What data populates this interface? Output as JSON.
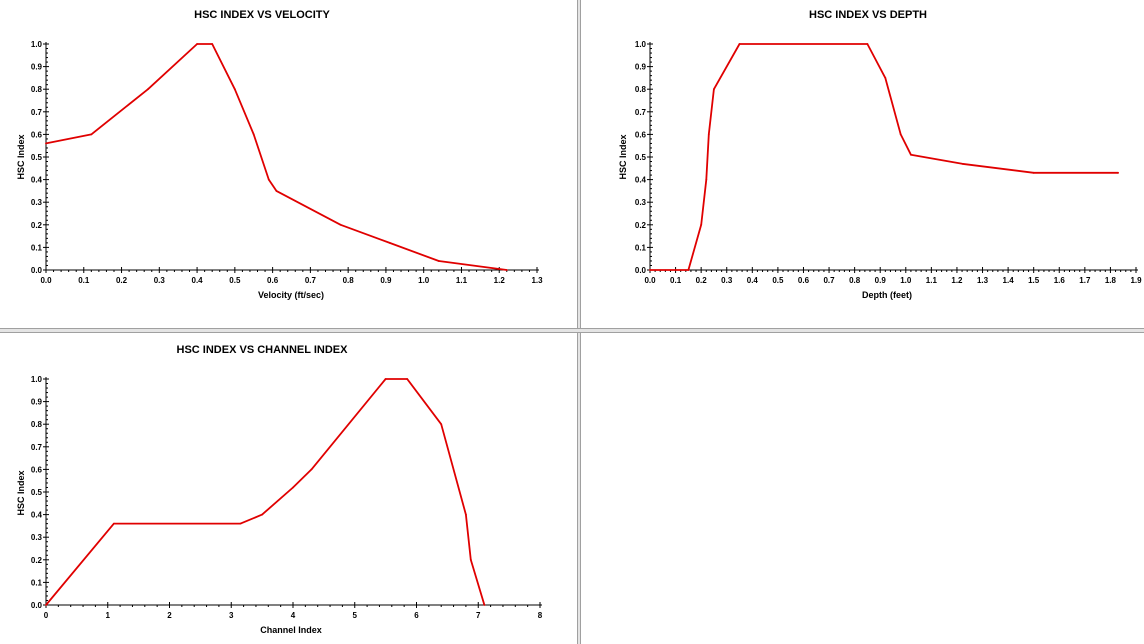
{
  "chart_data": [
    {
      "type": "line",
      "title": "HSC INDEX VS VELOCITY",
      "xlabel": "Velocity (ft/sec)",
      "ylabel": "HSC Index",
      "xlim": [
        0,
        1.3
      ],
      "ylim": [
        0,
        1.0
      ],
      "x_ticks": [
        "0.0",
        "0.1",
        "0.2",
        "0.3",
        "0.4",
        "0.5",
        "0.6",
        "0.7",
        "0.8",
        "0.9",
        "1.0",
        "1.1",
        "1.2",
        "1.3"
      ],
      "y_ticks": [
        "0.0",
        "0.1",
        "0.2",
        "0.3",
        "0.4",
        "0.5",
        "0.6",
        "0.7",
        "0.8",
        "0.9",
        "1.0"
      ],
      "series": [
        {
          "color": "#e00000",
          "x": [
            0.0,
            0.12,
            0.27,
            0.4,
            0.44,
            0.5,
            0.55,
            0.59,
            0.61,
            0.78,
            0.91,
            1.04,
            1.22
          ],
          "y": [
            0.56,
            0.6,
            0.8,
            1.0,
            1.0,
            0.8,
            0.6,
            0.4,
            0.35,
            0.2,
            0.12,
            0.04,
            0.0
          ]
        }
      ]
    },
    {
      "type": "line",
      "title": "HSC INDEX VS DEPTH",
      "xlabel": "Depth (feet)",
      "ylabel": "HSC Index",
      "xlim": [
        0,
        1.9
      ],
      "ylim": [
        0,
        1.0
      ],
      "x_ticks": [
        "0.0",
        "0.1",
        "0.2",
        "0.3",
        "0.4",
        "0.5",
        "0.6",
        "0.7",
        "0.8",
        "0.9",
        "1.0",
        "1.1",
        "1.2",
        "1.3",
        "1.4",
        "1.5",
        "1.6",
        "1.7",
        "1.8",
        "1.9"
      ],
      "y_ticks": [
        "0.0",
        "0.1",
        "0.2",
        "0.3",
        "0.4",
        "0.5",
        "0.6",
        "0.7",
        "0.8",
        "0.9",
        "1.0"
      ],
      "series": [
        {
          "color": "#e00000",
          "x": [
            0.0,
            0.15,
            0.2,
            0.22,
            0.23,
            0.25,
            0.35,
            0.85,
            0.92,
            0.98,
            1.02,
            1.22,
            1.5,
            1.83
          ],
          "y": [
            0.0,
            0.0,
            0.2,
            0.4,
            0.6,
            0.8,
            1.0,
            1.0,
            0.85,
            0.6,
            0.51,
            0.47,
            0.43,
            0.43
          ]
        }
      ]
    },
    {
      "type": "line",
      "title": "HSC INDEX VS CHANNEL INDEX",
      "xlabel": "Channel Index",
      "ylabel": "HSC Index",
      "xlim": [
        0,
        8
      ],
      "ylim": [
        0,
        1.0
      ],
      "x_ticks": [
        "0",
        "1",
        "2",
        "3",
        "4",
        "5",
        "6",
        "7",
        "8"
      ],
      "y_ticks": [
        "0.0",
        "0.1",
        "0.2",
        "0.3",
        "0.4",
        "0.5",
        "0.6",
        "0.7",
        "0.8",
        "0.9",
        "1.0"
      ],
      "series": [
        {
          "color": "#e00000",
          "x": [
            0.0,
            1.1,
            3.15,
            3.5,
            4.0,
            4.3,
            5.5,
            5.85,
            6.4,
            6.8,
            6.88,
            7.1
          ],
          "y": [
            0.0,
            0.36,
            0.36,
            0.4,
            0.52,
            0.6,
            1.0,
            1.0,
            0.8,
            0.4,
            0.2,
            0.0
          ]
        }
      ]
    }
  ]
}
